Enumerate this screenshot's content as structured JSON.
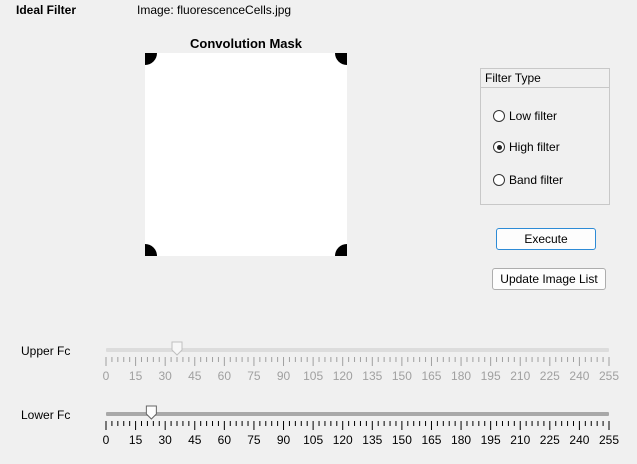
{
  "app": {
    "title": "Ideal Filter",
    "image_label": "Image: fluorescenceCells.jpg"
  },
  "mask": {
    "title": "Convolution Mask"
  },
  "filter_type": {
    "title": "Filter Type",
    "options": [
      {
        "label": "Low filter",
        "checked": false
      },
      {
        "label": "High filter",
        "checked": true
      },
      {
        "label": "Band filter",
        "checked": false
      }
    ]
  },
  "buttons": {
    "execute": "Execute",
    "update": "Update Image List"
  },
  "sliders": {
    "min": 0,
    "max": 255,
    "major_ticks": [
      "0",
      "15",
      "30",
      "45",
      "60",
      "75",
      "90",
      "105",
      "120",
      "135",
      "150",
      "165",
      "180",
      "195",
      "210",
      "225",
      "240",
      "255"
    ],
    "minor_step": 3,
    "upper": {
      "label": "Upper Fc",
      "value": 36,
      "enabled": false
    },
    "lower": {
      "label": "Lower Fc",
      "value": 23,
      "enabled": true
    }
  },
  "colors": {
    "accent": "#2d8bd6",
    "disabled": "#a0a0a0"
  }
}
